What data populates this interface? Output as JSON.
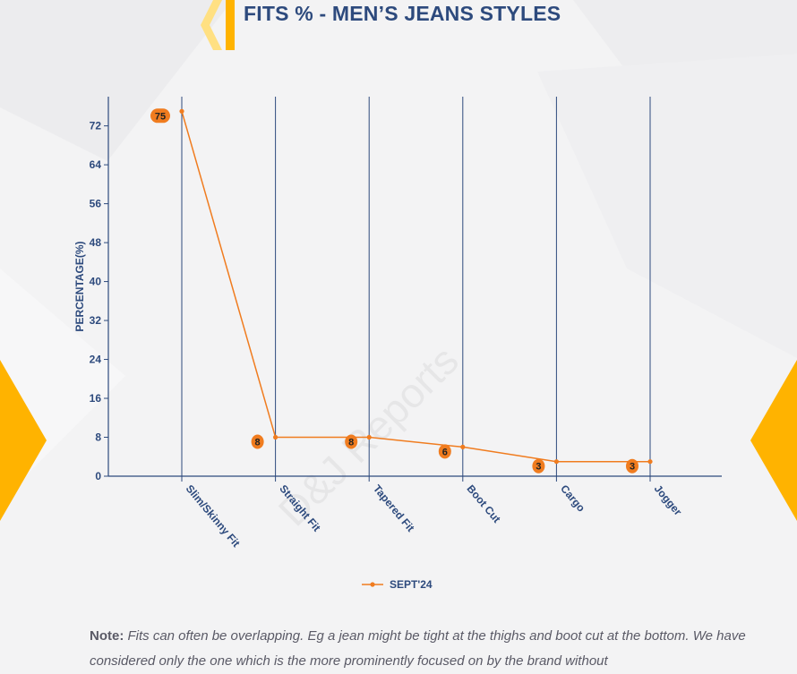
{
  "page": {
    "title": "FITS % - MEN’S JEANS STYLES",
    "watermark": "D&J Reports",
    "note_label": "Note:",
    "note_text": " Fits can often be overlapping. Eg a jean might be tight at the thighs and boot cut at the bottom. We have considered only the one which is the more prominently focused on by the brand without"
  },
  "colors": {
    "title": "#2d4a7d",
    "axis": "#2d4a7d",
    "series": "#f07c1f",
    "accent": "#ffb300"
  },
  "chart_data": {
    "type": "line",
    "title": "FITS % - MEN’S JEANS STYLES",
    "xlabel": "",
    "ylabel": "PERCENTAGE(%)",
    "categories": [
      "Slim/Skinny Fit",
      "Straight Fit",
      "Tapered Fit",
      "Boot Cut",
      "Cargo",
      "Jogger"
    ],
    "series": [
      {
        "name": "SEPT'24",
        "values": [
          75,
          8,
          8,
          6,
          3,
          3
        ]
      }
    ],
    "data_labels": [
      "75",
      "8",
      "8",
      "6",
      "3",
      "3"
    ],
    "y_ticks": [
      0,
      8,
      16,
      24,
      32,
      40,
      48,
      56,
      64,
      72
    ],
    "ylim": [
      0,
      78
    ],
    "grid": "vertical",
    "legend_position": "bottom"
  }
}
